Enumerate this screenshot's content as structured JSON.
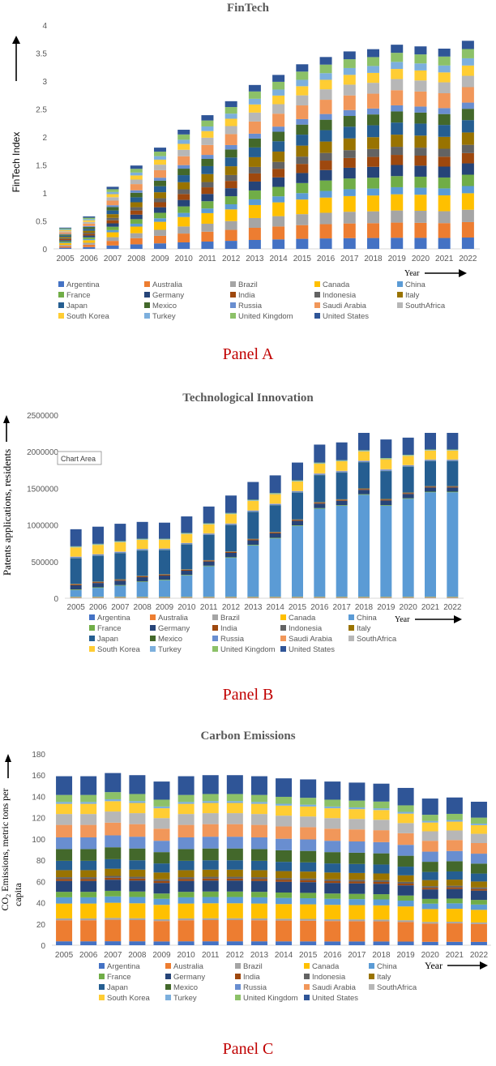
{
  "colors": {
    "Argentina": "#4472C4",
    "Australia": "#ED7D31",
    "Brazil": "#A5A5A5",
    "Canada": "#FFC000",
    "China": "#5B9BD5",
    "France": "#70AD47",
    "Germany": "#264478",
    "India": "#9E480E",
    "Indonesia": "#636363",
    "Italy": "#997300",
    "Japan": "#255E91",
    "Mexico": "#43682B",
    "Russia": "#698ED0",
    "Saudi Arabia": "#F1975A",
    "SouthAfrica": "#B7B7B7",
    "South Korea": "#FFCD33",
    "Turkey": "#7CAFDD",
    "United Kingdom": "#8CC168",
    "United States": "#2F5597"
  },
  "legend": [
    "Argentina",
    "Australia",
    "Brazil",
    "Canada",
    "China",
    "France",
    "Germany",
    "India",
    "Indonesia",
    "Italy",
    "Japan",
    "Mexico",
    "Russia",
    "Saudi Arabia",
    "SouthAfrica",
    "South Korea",
    "Turkey",
    "United Kingdom",
    "United States"
  ],
  "chart_data": [
    {
      "type": "bar",
      "stacked": true,
      "title": "FinTech",
      "panel_label": "Panel A",
      "xlabel": "Year",
      "ylabel": "FinTech Index",
      "ylim": [
        0,
        4
      ],
      "yticks": [
        0,
        0.5,
        1,
        1.5,
        2,
        2.5,
        3,
        3.5,
        4
      ],
      "ytick_labels": [
        "0",
        "0.5",
        "1",
        "1.5",
        "2",
        "2.5",
        "3",
        "3.5",
        "4"
      ],
      "categories": [
        "2005",
        "2006",
        "2007",
        "2008",
        "2009",
        "2010",
        "2011",
        "2012",
        "2013",
        "2014",
        "2015",
        "2016",
        "2017",
        "2018",
        "2019",
        "2020",
        "2021",
        "2022"
      ],
      "totals": [
        0.38,
        0.58,
        1.11,
        1.49,
        1.81,
        2.13,
        2.39,
        2.64,
        2.93,
        3.11,
        3.3,
        3.43,
        3.53,
        3.57,
        3.65,
        3.62,
        3.58,
        3.72
      ]
    },
    {
      "type": "bar",
      "stacked": true,
      "title": "Technological Innovation",
      "panel_label": "Panel B",
      "xlabel": "Year",
      "ylabel": "Patents applications, residents",
      "annotation": "Chart Area",
      "ylim": [
        0,
        2500000
      ],
      "yticks": [
        0,
        500000,
        1000000,
        1500000,
        2000000,
        2500000
      ],
      "ytick_labels": [
        "0",
        "500000",
        "1000000",
        "1500000",
        "2000000",
        "2500000"
      ],
      "categories": [
        "2005",
        "2006",
        "2007",
        "2008",
        "2009",
        "2010",
        "2011",
        "2012",
        "2013",
        "2014",
        "2015",
        "2016",
        "2017",
        "2018",
        "2019",
        "2020",
        "2021",
        "2022"
      ],
      "china": [
        95000,
        125000,
        155000,
        205000,
        230000,
        295000,
        420000,
        535000,
        705000,
        800000,
        970000,
        1205000,
        1245000,
        1395000,
        1245000,
        1340000,
        1430000,
        1430000
      ],
      "totals": [
        925000,
        960000,
        1000000,
        1025000,
        1015000,
        1100000,
        1235000,
        1385000,
        1570000,
        1660000,
        1835000,
        2080000,
        2110000,
        2240000,
        2150000,
        2175000,
        2240000,
        2240000
      ]
    },
    {
      "type": "bar",
      "stacked": true,
      "title": "Carbon Emissions",
      "panel_label": "Panel C",
      "xlabel": "Year",
      "ylabel_line1": "CO",
      "ylabel_sub": "2",
      "ylabel_line1b": " Emissions, metric tons per",
      "ylabel_line2": "capita",
      "ylim": [
        0,
        180
      ],
      "yticks": [
        0,
        20,
        40,
        60,
        80,
        100,
        120,
        140,
        160,
        180
      ],
      "ytick_labels": [
        "0",
        "20",
        "40",
        "60",
        "80",
        "100",
        "120",
        "140",
        "160",
        "180"
      ],
      "categories": [
        "2005",
        "2006",
        "2007",
        "2008",
        "2009",
        "2010",
        "2011",
        "2012",
        "2013",
        "2014",
        "2015",
        "2016",
        "2017",
        "2018",
        "2019",
        "2020",
        "2021",
        "2022"
      ],
      "totals": [
        159,
        159,
        162,
        160,
        154,
        159,
        160,
        160,
        159,
        157,
        156,
        154,
        153,
        152,
        148,
        138,
        139,
        135
      ]
    }
  ]
}
